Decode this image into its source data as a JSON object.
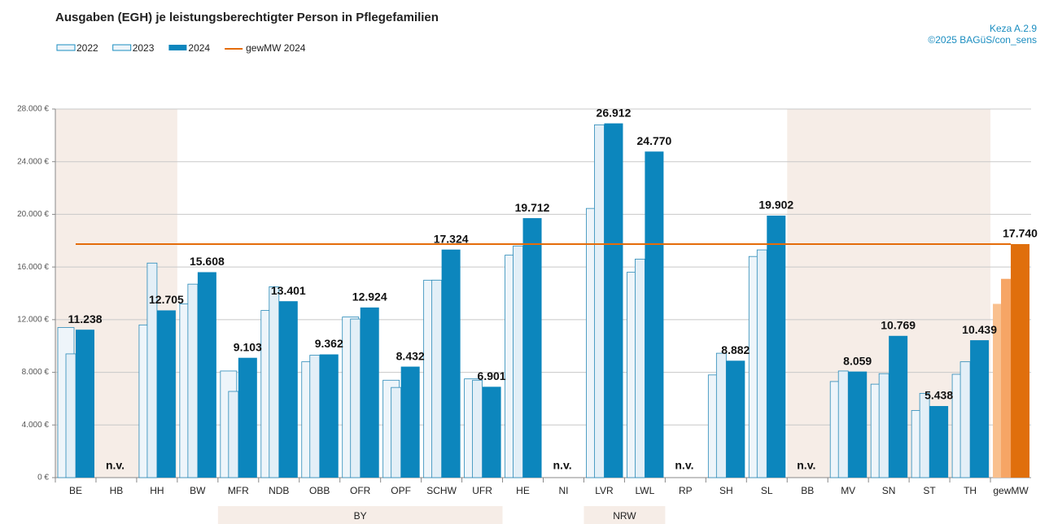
{
  "chart_data": {
    "type": "bar",
    "title": "Ausgaben (EGH) je leistungsberechtigter Person in Pflegefamilien",
    "source_lines": [
      "Keza A.2.9",
      "©2025 BAGüS/con_sens"
    ],
    "categories": [
      "BE",
      "HB",
      "HH",
      "BW",
      "MFR",
      "NDB",
      "OBB",
      "OFR",
      "OPF",
      "SCHW",
      "UFR",
      "HE",
      "NI",
      "LVR",
      "LWL",
      "RP",
      "SH",
      "SL",
      "BB",
      "MV",
      "SN",
      "ST",
      "TH",
      "gewMW"
    ],
    "series": [
      {
        "name": "2022",
        "color": "#eef5fa",
        "highlight_color": "#f9c08e",
        "values": [
          11400,
          null,
          11600,
          13200,
          8100,
          12700,
          8800,
          12200,
          7400,
          15000,
          7500,
          16900,
          null,
          20450,
          15600,
          null,
          7800,
          16800,
          null,
          7300,
          7100,
          5100,
          7850,
          13200
        ]
      },
      {
        "name": "2023",
        "color": "#e3eff7",
        "highlight_color": "#f6a565",
        "values": [
          9400,
          null,
          16300,
          14700,
          6550,
          14500,
          9300,
          12050,
          6850,
          15000,
          7400,
          17600,
          null,
          26800,
          16600,
          null,
          9450,
          17300,
          null,
          8100,
          7900,
          6400,
          8800,
          15100
        ]
      },
      {
        "name": "2024",
        "color": "#0c86bd",
        "highlight_color": "#e06f0c",
        "values": [
          11238,
          null,
          12705,
          15608,
          9103,
          13401,
          9362,
          12924,
          8432,
          17324,
          6901,
          19712,
          null,
          26912,
          24770,
          null,
          8882,
          19902,
          null,
          8059,
          10769,
          5438,
          10439,
          17740
        ],
        "value_labels": [
          "11.238",
          "n.v.",
          "12.705",
          "15.608",
          "9.103",
          "13.401",
          "9.362",
          "12.924",
          "8.432",
          "17.324",
          "6.901",
          "19.712",
          "n.v.",
          "26.912",
          "24.770",
          "n.v.",
          "8.882",
          "19.902",
          "n.v.",
          "8.059",
          "10.769",
          "5.438",
          "10.439",
          "17.740"
        ]
      }
    ],
    "highlight_category": "gewMW",
    "reference_line": {
      "name": "gewMW 2024",
      "value": 17740,
      "color": "#e46c0a"
    },
    "shaded_ranges": [
      {
        "from": "BE",
        "to": "HH"
      },
      {
        "from": "BB",
        "to": "TH"
      }
    ],
    "groups": [
      {
        "label": "BY",
        "from": "MFR",
        "to": "UFR"
      },
      {
        "label": "NRW",
        "from": "LVR",
        "to": "LWL"
      }
    ],
    "ylim": [
      0,
      28000
    ],
    "yticks": [
      {
        "value": 0,
        "label": "0 €"
      },
      {
        "value": 4000,
        "label": "4.000 €"
      },
      {
        "value": 8000,
        "label": "8.000 €"
      },
      {
        "value": 12000,
        "label": "12.000 €"
      },
      {
        "value": 16000,
        "label": "16.000 €"
      },
      {
        "value": 20000,
        "label": "20.000 €"
      },
      {
        "value": 24000,
        "label": "24.000 €"
      },
      {
        "value": 28000,
        "label": "28.000 €"
      }
    ],
    "grid": true
  }
}
